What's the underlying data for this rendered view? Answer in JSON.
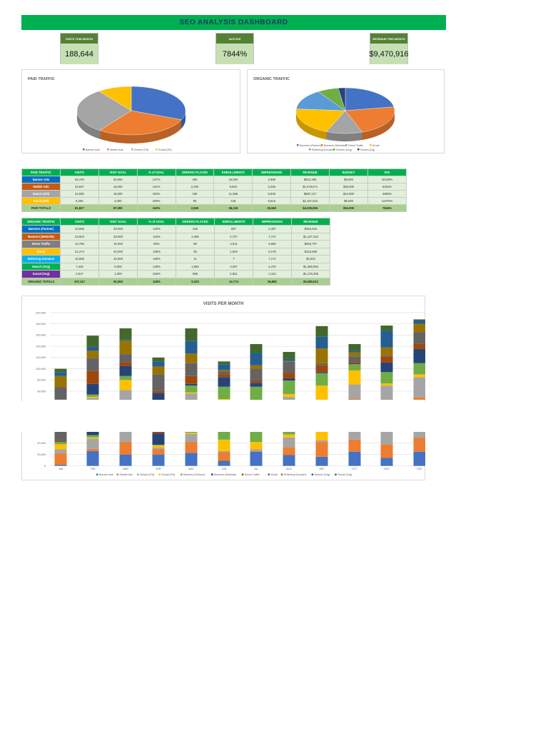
{
  "header": {
    "title": "SEO ANALYSIS DASHBOARD"
  },
  "kpis": [
    {
      "label": "VISITS THIS MONTH",
      "value": "188,644"
    },
    {
      "label": "AVG ROI",
      "value": "7844%"
    },
    {
      "label": "REVENUE THIS MONTH",
      "value": "$9,470,916"
    }
  ],
  "paid_pie": {
    "title": "PAID TRAFFIC",
    "type": "pie",
    "labels": [
      "Banner Ads",
      "Mobile Ads",
      "Search (Pd)",
      "Social (Pd)"
    ],
    "values": [
      25475,
      23547,
      24500,
      8305
    ],
    "colors": [
      "#4472c4",
      "#ed7d31",
      "#a5a5a5",
      "#ffc000"
    ]
  },
  "organic_pie": {
    "title": "ORGANIC TRAFFIC",
    "type": "pie",
    "labels": [
      "Banners (Partner)",
      "Banners (Website)",
      "Direct Traffic",
      "Email",
      "Referring Domains",
      "Search (Org)",
      "Social (Org)"
    ],
    "values": [
      23966,
      23604,
      12766,
      21274,
      15556,
      7434,
      2517
    ],
    "colors": [
      "#4472c4",
      "#ed7d31",
      "#a5a5a5",
      "#ffc000",
      "#5b9bd5",
      "#70ad47",
      "#264478"
    ]
  },
  "paid_table": {
    "headers": [
      "PAID TRAFFIC",
      "VISITS",
      "VISIT GOAL",
      "% of GOAL",
      "ORDERS PLACED",
      "ENROLLMENTS",
      "IMPRESSIONS",
      "REVENUE",
      "BUDGET",
      "ROI"
    ],
    "rows": [
      {
        "label": "Banner Ads",
        "color": "#0070c0",
        "cells": [
          "25,475",
          "20,000",
          "127%",
          "450",
          "15,084",
          "2,956",
          "$912,496",
          "$9,000",
          "10139%"
        ]
      },
      {
        "label": "Mobile Ads",
        "color": "#c55a11",
        "cells": [
          "23,547",
          "18,000",
          "131%",
          "2,200",
          "9,864",
          "3,256",
          "$1,578,671",
          "$25,000",
          "6315%"
        ]
      },
      {
        "label": "Search (Pd)",
        "color": "#a5a5a5",
        "cells": [
          "24,500",
          "15,000",
          "163%",
          "180",
          "11,056",
          "5,830",
          "$587,127",
          "$12,000",
          "4893%"
        ]
      },
      {
        "label": "Social (Pd)",
        "color": "#ffc000",
        "cells": [
          "8,305",
          "4,000",
          "208%",
          "90",
          "126",
          "8,616",
          "$1,157,610",
          "$8,000",
          "14470%"
        ]
      }
    ],
    "totals": {
      "label": "PAID TOTALS",
      "cells": [
        "81,827",
        "57,000",
        "143%",
        "2,920",
        "36,126",
        "20,662",
        "$4,235,904",
        "$54,000",
        "7844%"
      ]
    }
  },
  "organic_table": {
    "headers": [
      "ORGANIC TRAFFIC",
      "VISITS",
      "VISIT GOAL",
      "% of GOAL",
      "ORDERS PLACED",
      "ENROLLMENTS",
      "IMPRESSIONS",
      "REVENUE"
    ],
    "rows": [
      {
        "label": "Banners (Partner)",
        "color": "#0070c0",
        "cells": [
          "23,966",
          "20,000",
          "120%",
          "345",
          "857",
          "2,497",
          "$354,944"
        ]
      },
      {
        "label": "Banners (Website)",
        "color": "#c55a11",
        "cells": [
          "23,604",
          "20,000",
          "118%",
          "2,286",
          "2,747",
          "7,747",
          "$1,137,442"
        ]
      },
      {
        "label": "Direct Traffic",
        "color": "#7f7f7f",
        "cells": [
          "12,766",
          "15,000",
          "85%",
          "88",
          "2,011",
          "5,680",
          "$832,707"
        ]
      },
      {
        "label": "Email",
        "color": "#ffc000",
        "cells": [
          "21,274",
          "20,000",
          "106%",
          "35",
          "1,004",
          "5,176",
          "$415,608"
        ]
      },
      {
        "label": "Referring Domains",
        "color": "#00b0f0",
        "cells": [
          "15,556",
          "10,000",
          "156%",
          "11",
          "7",
          "7,171",
          "$3,042"
        ]
      },
      {
        "label": "Search (Org)",
        "color": "#00b050",
        "cells": [
          "7,434",
          "5,000",
          "149%",
          "1,582",
          "3,307",
          "4,470",
          "$1,369,064"
        ]
      },
      {
        "label": "Social (Org)",
        "color": "#7030a0",
        "cells": [
          "2,517",
          "1,000",
          "252%",
          "986",
          "2,841",
          "4,113",
          "$1,176,205"
        ]
      }
    ],
    "totals": {
      "label": "ORGANIC TOTALS",
      "cells": [
        "107,117",
        "91,000",
        "118%",
        "5,333",
        "12,774",
        "36,882",
        "$5,289,012"
      ]
    }
  },
  "chart_data": {
    "type": "bar",
    "stacked": true,
    "title": "VISITS PER MONTH",
    "categories": [
      "JAN",
      "FEB",
      "MAR",
      "APR",
      "MAY",
      "JUN",
      "JUL",
      "AUG",
      "SEP",
      "OCT",
      "NOV",
      "DEC"
    ],
    "ylim": [
      0,
      200000
    ],
    "yticks": [
      0,
      20000,
      40000,
      60000,
      80000,
      100000,
      120000,
      140000,
      160000,
      180000,
      200000
    ],
    "grid": true,
    "legend": "bottom",
    "series": [
      {
        "name": "Banner Ads",
        "color": "#4472c4",
        "values": [
          2000,
          26000,
          20000,
          20000,
          23000,
          9000,
          25000,
          19000,
          16000,
          25000,
          14000,
          25000
        ]
      },
      {
        "name": "Mobile Ads",
        "color": "#ed7d31",
        "values": [
          20000,
          4000,
          22000,
          9000,
          19000,
          15000,
          1000,
          14000,
          26000,
          21000,
          24000,
          24000
        ]
      },
      {
        "name": "Search (Pd)",
        "color": "#a5a5a5",
        "values": [
          7000,
          18000,
          20000,
          3000,
          14000,
          2000,
          3000,
          17000,
          3000,
          26000,
          32000,
          36000
        ]
      },
      {
        "name": "Social (Pd)",
        "color": "#ffc000",
        "values": [
          9000,
          2000,
          18000,
          4000,
          2000,
          20000,
          13000,
          5000,
          25000,
          25000,
          4000,
          5000
        ]
      },
      {
        "name": "Banners (Partner)",
        "color": "#70ad47",
        "values": [
          4000,
          4000,
          7000,
          1000,
          12000,
          22000,
          26000,
          24000,
          22000,
          11000,
          20000,
          20000
        ]
      },
      {
        "name": "Banners (Website)",
        "color": "#264478",
        "values": [
          1000,
          19000,
          18000,
          20000,
          3000,
          17000,
          7000,
          4000,
          2000,
          1000,
          17000,
          25000
        ]
      },
      {
        "name": "Direct Traffic",
        "color": "#9e480e",
        "values": [
          2000,
          23000,
          7000,
          4000,
          14000,
          5000,
          5000,
          10000,
          12000,
          3000,
          11000,
          10000
        ]
      },
      {
        "name": "Email",
        "color": "#636363",
        "values": [
          22000,
          23000,
          14000,
          29000,
          23000,
          5000,
          20000,
          20000,
          4000,
          10000,
          2000,
          20000
        ]
      },
      {
        "name": "Referring Domains",
        "color": "#997300",
        "values": [
          20000,
          13000,
          24000,
          14000,
          17000,
          3000,
          6000,
          1000,
          26000,
          7000,
          14000,
          15000
        ]
      },
      {
        "name": "Search (Org)",
        "color": "#255e91",
        "values": [
          7000,
          7000,
          2000,
          9000,
          23000,
          10000,
          22000,
          4000,
          21000,
          3000,
          30000,
          6000
        ]
      },
      {
        "name": "Social (Org)",
        "color": "#43682b",
        "values": [
          6000,
          20000,
          20000,
          7000,
          22000,
          5000,
          16000,
          12000,
          19000,
          12000,
          9000,
          2000
        ]
      }
    ]
  }
}
